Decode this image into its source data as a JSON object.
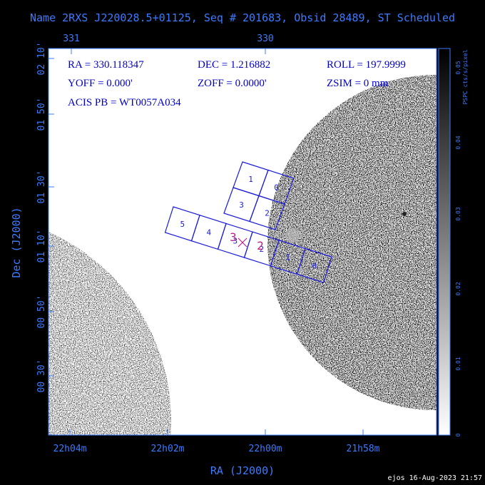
{
  "header": {
    "title": "Name 2RXS J220028.5+01125, Seq # 201683, Obsid 28489, ST Scheduled"
  },
  "info": {
    "line1": [
      "RA = 330.118347",
      "DEC = 1.216882",
      "ROLL = 197.9999"
    ],
    "line2": [
      "YOFF = 0.000'",
      "ZOFF = 0.0000'",
      "ZSIM = 0 mm"
    ],
    "line3": "ACIS PB = WT0057A034"
  },
  "axes": {
    "top_ticks": [
      "331",
      "330"
    ],
    "left_ticks": [
      "02 10'",
      "01 50'",
      "01 30'",
      "01 10'",
      "00 50'",
      "00 30'"
    ],
    "bottom_ticks": [
      "22h04m",
      "22h02m",
      "22h00m",
      "21h58m"
    ],
    "y_label": "Dec (J2000)",
    "x_label": "RA (J2000)"
  },
  "colorbar": {
    "label": "PSPC cts/s/pixel",
    "ticks": [
      "0",
      "0.01",
      "0.02",
      "0.03",
      "0.04",
      "0.05"
    ]
  },
  "chips": {
    "i_array": [
      "1",
      "0",
      "3",
      "2"
    ],
    "s_array": [
      "5",
      "4",
      "3",
      "2",
      "1",
      "0"
    ],
    "aimpoint": [
      "3",
      "2"
    ]
  },
  "footer": "ejos 16-Aug-2023 21:57"
}
